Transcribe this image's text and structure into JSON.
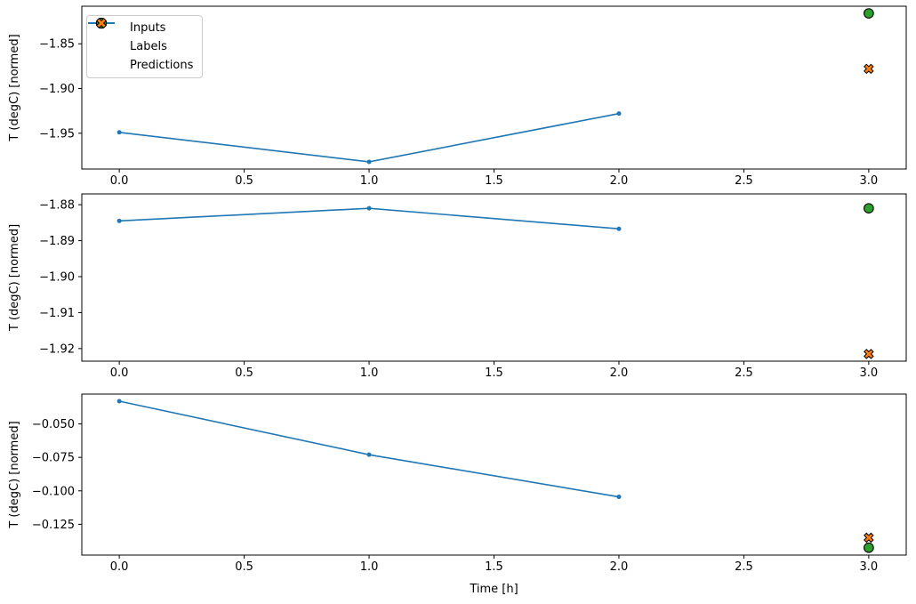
{
  "figure": {
    "xlabel": "Time [h]",
    "background": "#ffffff",
    "axis_color": "#000000",
    "legend": {
      "position": "upper left",
      "border_color": "#cccccc",
      "items": [
        {
          "label": "Inputs",
          "marker": "line-dot",
          "color": "#1f77b4"
        },
        {
          "label": "Labels",
          "marker": "circle",
          "color": "#2ca02c"
        },
        {
          "label": "Predictions",
          "marker": "x-cross",
          "color": "#ff7f0e"
        }
      ]
    }
  },
  "chart_data": [
    {
      "type": "line",
      "title": "",
      "xlabel": "",
      "ylabel": "T (degC) [normed]",
      "grid": false,
      "xlim": [
        -0.15,
        3.15
      ],
      "ylim": [
        -1.99,
        -1.808
      ],
      "xticks": {
        "values": [
          0,
          0.5,
          1,
          1.5,
          2,
          2.5,
          3
        ],
        "labels": [
          "0.0",
          "0.5",
          "1.0",
          "1.5",
          "2.0",
          "2.5",
          "3.0"
        ]
      },
      "yticks": {
        "values": [
          -1.85,
          -1.9,
          -1.95
        ],
        "labels": [
          "−1.85",
          "−1.90",
          "−1.95"
        ]
      },
      "series": [
        {
          "name": "Inputs",
          "type": "line",
          "marker": "dot",
          "color": "#1f77b4",
          "x": [
            0,
            1,
            2
          ],
          "y": [
            -1.949,
            -1.982,
            -1.928
          ]
        },
        {
          "name": "Labels",
          "type": "scatter",
          "marker": "circle",
          "color": "#2ca02c",
          "x": [
            3
          ],
          "y": [
            -1.816
          ]
        },
        {
          "name": "Predictions",
          "type": "scatter",
          "marker": "x-cross",
          "color": "#ff7f0e",
          "x": [
            3
          ],
          "y": [
            -1.878
          ]
        }
      ]
    },
    {
      "type": "line",
      "title": "",
      "xlabel": "",
      "ylabel": "T (degC) [normed]",
      "grid": false,
      "xlim": [
        -0.15,
        3.15
      ],
      "ylim": [
        -1.9235,
        -1.877
      ],
      "xticks": {
        "values": [
          0,
          0.5,
          1,
          1.5,
          2,
          2.5,
          3
        ],
        "labels": [
          "0.0",
          "0.5",
          "1.0",
          "1.5",
          "2.0",
          "2.5",
          "3.0"
        ]
      },
      "yticks": {
        "values": [
          -1.88,
          -1.89,
          -1.9,
          -1.91,
          -1.92
        ],
        "labels": [
          "−1.88",
          "−1.89",
          "−1.90",
          "−1.91",
          "−1.92"
        ]
      },
      "series": [
        {
          "name": "Inputs",
          "type": "line",
          "marker": "dot",
          "color": "#1f77b4",
          "x": [
            0,
            1,
            2
          ],
          "y": [
            -1.8845,
            -1.881,
            -1.8867
          ]
        },
        {
          "name": "Labels",
          "type": "scatter",
          "marker": "circle",
          "color": "#2ca02c",
          "x": [
            3
          ],
          "y": [
            -1.881
          ]
        },
        {
          "name": "Predictions",
          "type": "scatter",
          "marker": "x-cross",
          "color": "#ff7f0e",
          "x": [
            3
          ],
          "y": [
            -1.9215
          ]
        }
      ]
    },
    {
      "type": "line",
      "title": "",
      "xlabel": "Time [h]",
      "ylabel": "T (degC) [normed]",
      "grid": false,
      "xlim": [
        -0.15,
        3.15
      ],
      "ylim": [
        -0.148,
        -0.0277
      ],
      "xticks": {
        "values": [
          0,
          0.5,
          1,
          1.5,
          2,
          2.5,
          3
        ],
        "labels": [
          "0.0",
          "0.5",
          "1.0",
          "1.5",
          "2.0",
          "2.5",
          "3.0"
        ]
      },
      "yticks": {
        "values": [
          -0.05,
          -0.075,
          -0.1,
          -0.125
        ],
        "labels": [
          "−0.050",
          "−0.075",
          "−0.100",
          "−0.125"
        ]
      },
      "series": [
        {
          "name": "Inputs",
          "type": "line",
          "marker": "dot",
          "color": "#1f77b4",
          "x": [
            0,
            1,
            2
          ],
          "y": [
            -0.033,
            -0.073,
            -0.1045
          ]
        },
        {
          "name": "Labels",
          "type": "scatter",
          "marker": "circle",
          "color": "#2ca02c",
          "x": [
            3
          ],
          "y": [
            -0.1425
          ]
        },
        {
          "name": "Predictions",
          "type": "scatter",
          "marker": "x-cross",
          "color": "#ff7f0e",
          "x": [
            3
          ],
          "y": [
            -0.135
          ]
        }
      ]
    }
  ]
}
